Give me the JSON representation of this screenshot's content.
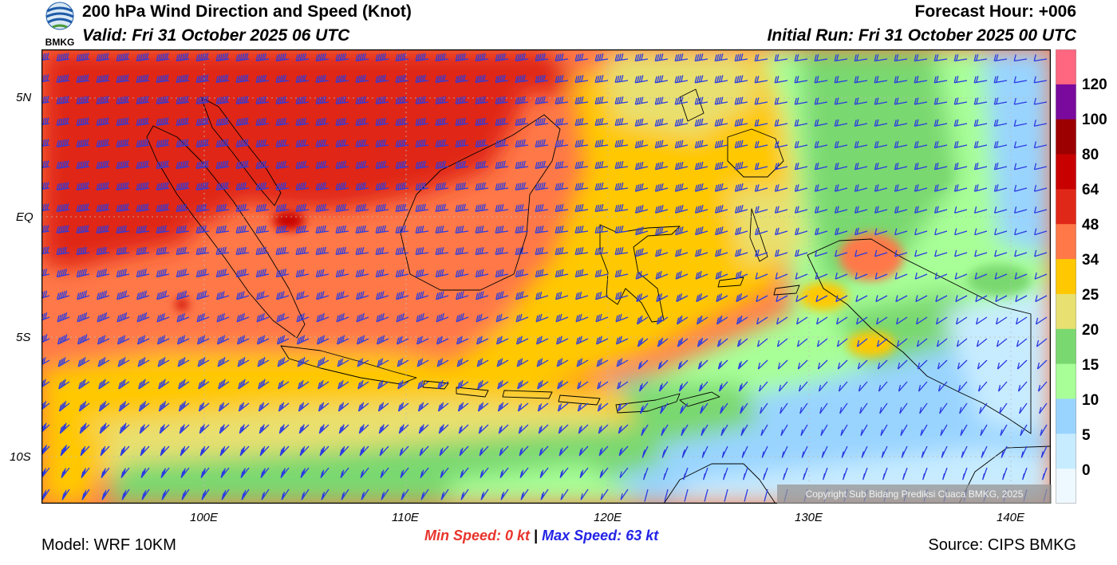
{
  "header": {
    "title": "200 hPa Wind Direction and Speed (Knot)",
    "valid": "Valid: Fri 31 October 2025 06 UTC",
    "forecast_hour": "Forecast Hour: +006",
    "initial_run": "Initial Run: Fri 31 October 2025 00 UTC"
  },
  "logo": {
    "text": "BMKG"
  },
  "map": {
    "lat_labels": [
      "5N",
      "EQ",
      "5S",
      "10S"
    ],
    "lon_labels": [
      "100E",
      "110E",
      "120E",
      "130E",
      "140E"
    ],
    "copyright": "Copyright Sub Bidang Prediksi Cuaca BMKG, 2025",
    "barb_color": "#2b3be0"
  },
  "legend": {
    "labels": [
      "120",
      "100",
      "80",
      "64",
      "48",
      "34",
      "25",
      "20",
      "15",
      "10",
      "5",
      "0"
    ],
    "colors": [
      "#ff6680",
      "#7a0a9e",
      "#9c0000",
      "#c80000",
      "#e02818",
      "#ff7848",
      "#ffc800",
      "#e8e070",
      "#7ad870",
      "#a8ff98",
      "#99d4ff",
      "#c8ecff",
      "#eef8ff"
    ]
  },
  "speed": {
    "min_label": "Min Speed:",
    "min_value": "0 kt",
    "separator": "|",
    "max_label": "Max Speed:",
    "max_value": "63 kt"
  },
  "footer": {
    "model": "Model: WRF 10KM",
    "source": "Source: CIPS BMKG"
  }
}
